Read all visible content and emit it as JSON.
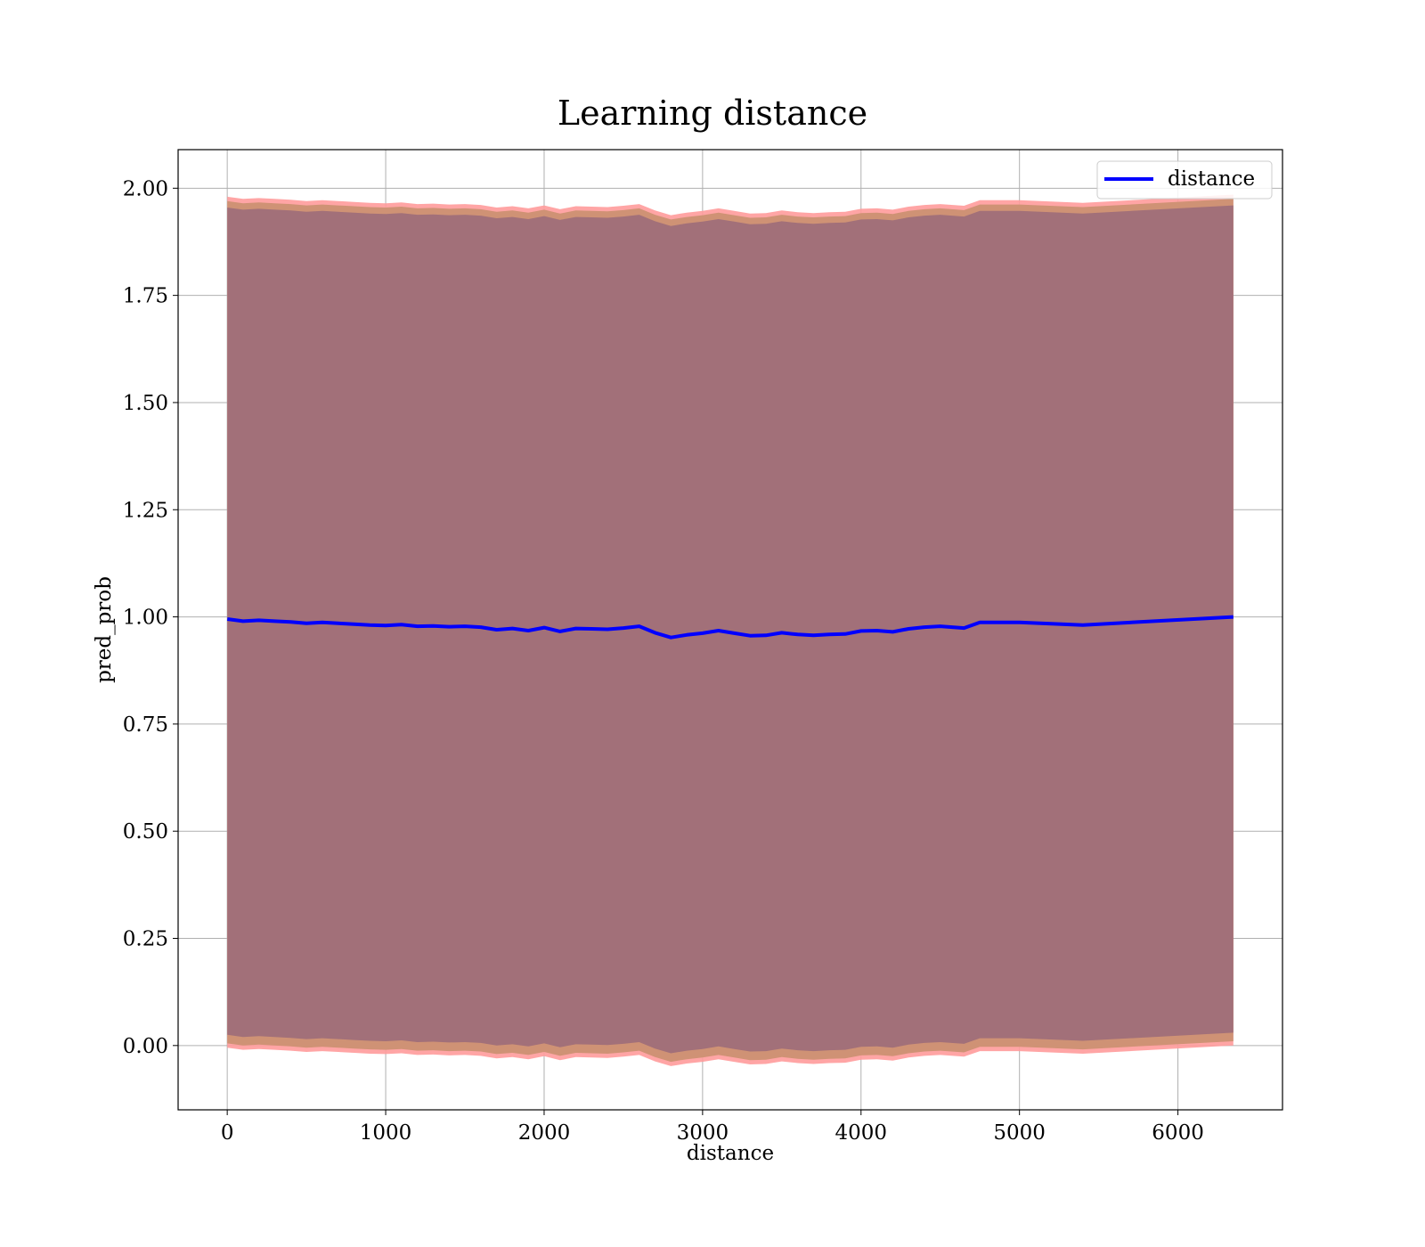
{
  "chart_data": {
    "type": "line",
    "title": "Learning distance",
    "xlabel": "distance",
    "ylabel": "pred_prob",
    "xlim": [
      -310,
      6660
    ],
    "ylim": [
      -0.15,
      2.09
    ],
    "xticks": [
      0,
      1000,
      2000,
      3000,
      4000,
      5000,
      6000
    ],
    "xtick_labels": [
      "0",
      "1000",
      "2000",
      "3000",
      "4000",
      "5000",
      "6000"
    ],
    "yticks": [
      0.0,
      0.25,
      0.5,
      0.75,
      1.0,
      1.25,
      1.5,
      1.75,
      2.0
    ],
    "ytick_labels": [
      "0.00",
      "0.25",
      "0.50",
      "0.75",
      "1.00",
      "1.25",
      "1.50",
      "1.75",
      "2.00"
    ],
    "grid": true,
    "legend_position": "top-right",
    "colors": {
      "line": "#0000ff",
      "band_inner": "#a27079",
      "band_outer": "#cf9275",
      "band_edge": "#ff9b9b",
      "grid": "#b0b0b0"
    },
    "series": [
      {
        "name": "distance",
        "x": [
          0,
          100,
          200,
          300,
          400,
          500,
          600,
          700,
          800,
          900,
          1000,
          1100,
          1200,
          1300,
          1400,
          1500,
          1600,
          1700,
          1800,
          1900,
          2000,
          2100,
          2200,
          2300,
          2400,
          2500,
          2600,
          2700,
          2800,
          2900,
          3000,
          3100,
          3200,
          3300,
          3400,
          3500,
          3600,
          3700,
          3800,
          3900,
          4000,
          4100,
          4200,
          4300,
          4400,
          4500,
          4650,
          4750,
          5000,
          5400,
          6350
        ],
        "y": [
          0.995,
          0.99,
          0.992,
          0.99,
          0.988,
          0.985,
          0.987,
          0.985,
          0.983,
          0.981,
          0.98,
          0.982,
          0.978,
          0.979,
          0.977,
          0.978,
          0.976,
          0.97,
          0.973,
          0.968,
          0.975,
          0.966,
          0.973,
          0.972,
          0.971,
          0.974,
          0.978,
          0.963,
          0.952,
          0.958,
          0.962,
          0.968,
          0.962,
          0.956,
          0.957,
          0.963,
          0.959,
          0.957,
          0.959,
          0.96,
          0.967,
          0.968,
          0.965,
          0.972,
          0.976,
          0.978,
          0.974,
          0.987,
          0.987,
          0.981,
          1.0
        ]
      }
    ]
  }
}
